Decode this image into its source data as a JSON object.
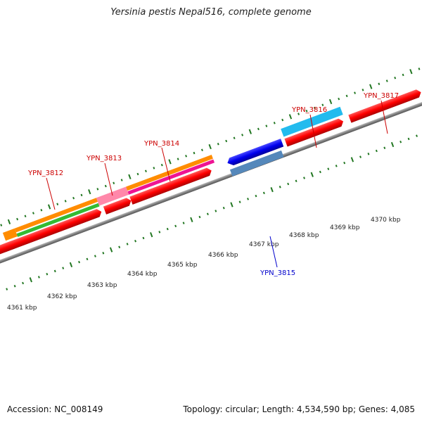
{
  "title": "Yersinia pestis Nepal516, complete genome",
  "footer": {
    "accession": "Accession: NC_008149",
    "summary": "Topology: circular; Length: 4,534,590 bp; Genes: 4,085"
  },
  "scale_labels": [
    "4361 kbp",
    "4362 kbp",
    "4363 kbp",
    "4364 kbp",
    "4365 kbp",
    "4366 kbp",
    "4367 kbp",
    "4368 kbp",
    "4369 kbp",
    "4370 kbp"
  ],
  "genes": [
    {
      "id": "YPN_3812",
      "color": "#cc0000"
    },
    {
      "id": "YPN_3813",
      "color": "#cc0000"
    },
    {
      "id": "YPN_3814",
      "color": "#cc0000"
    },
    {
      "id": "YPN_3815",
      "color": "#0000cc"
    },
    {
      "id": "YPN_3816",
      "color": "#cc0000"
    },
    {
      "id": "YPN_3817",
      "color": "#cc0000"
    }
  ],
  "colors": {
    "backbone": "#808080",
    "forward_gene": "#ff0000",
    "reverse_gene": "#0000ff",
    "orange": "#ff8c00",
    "green": "#33bb33",
    "pink": "#ff66aa",
    "magenta": "#ee1493",
    "cyan": "#22bbee",
    "steel": "#5588bb",
    "tick": "#227722"
  }
}
